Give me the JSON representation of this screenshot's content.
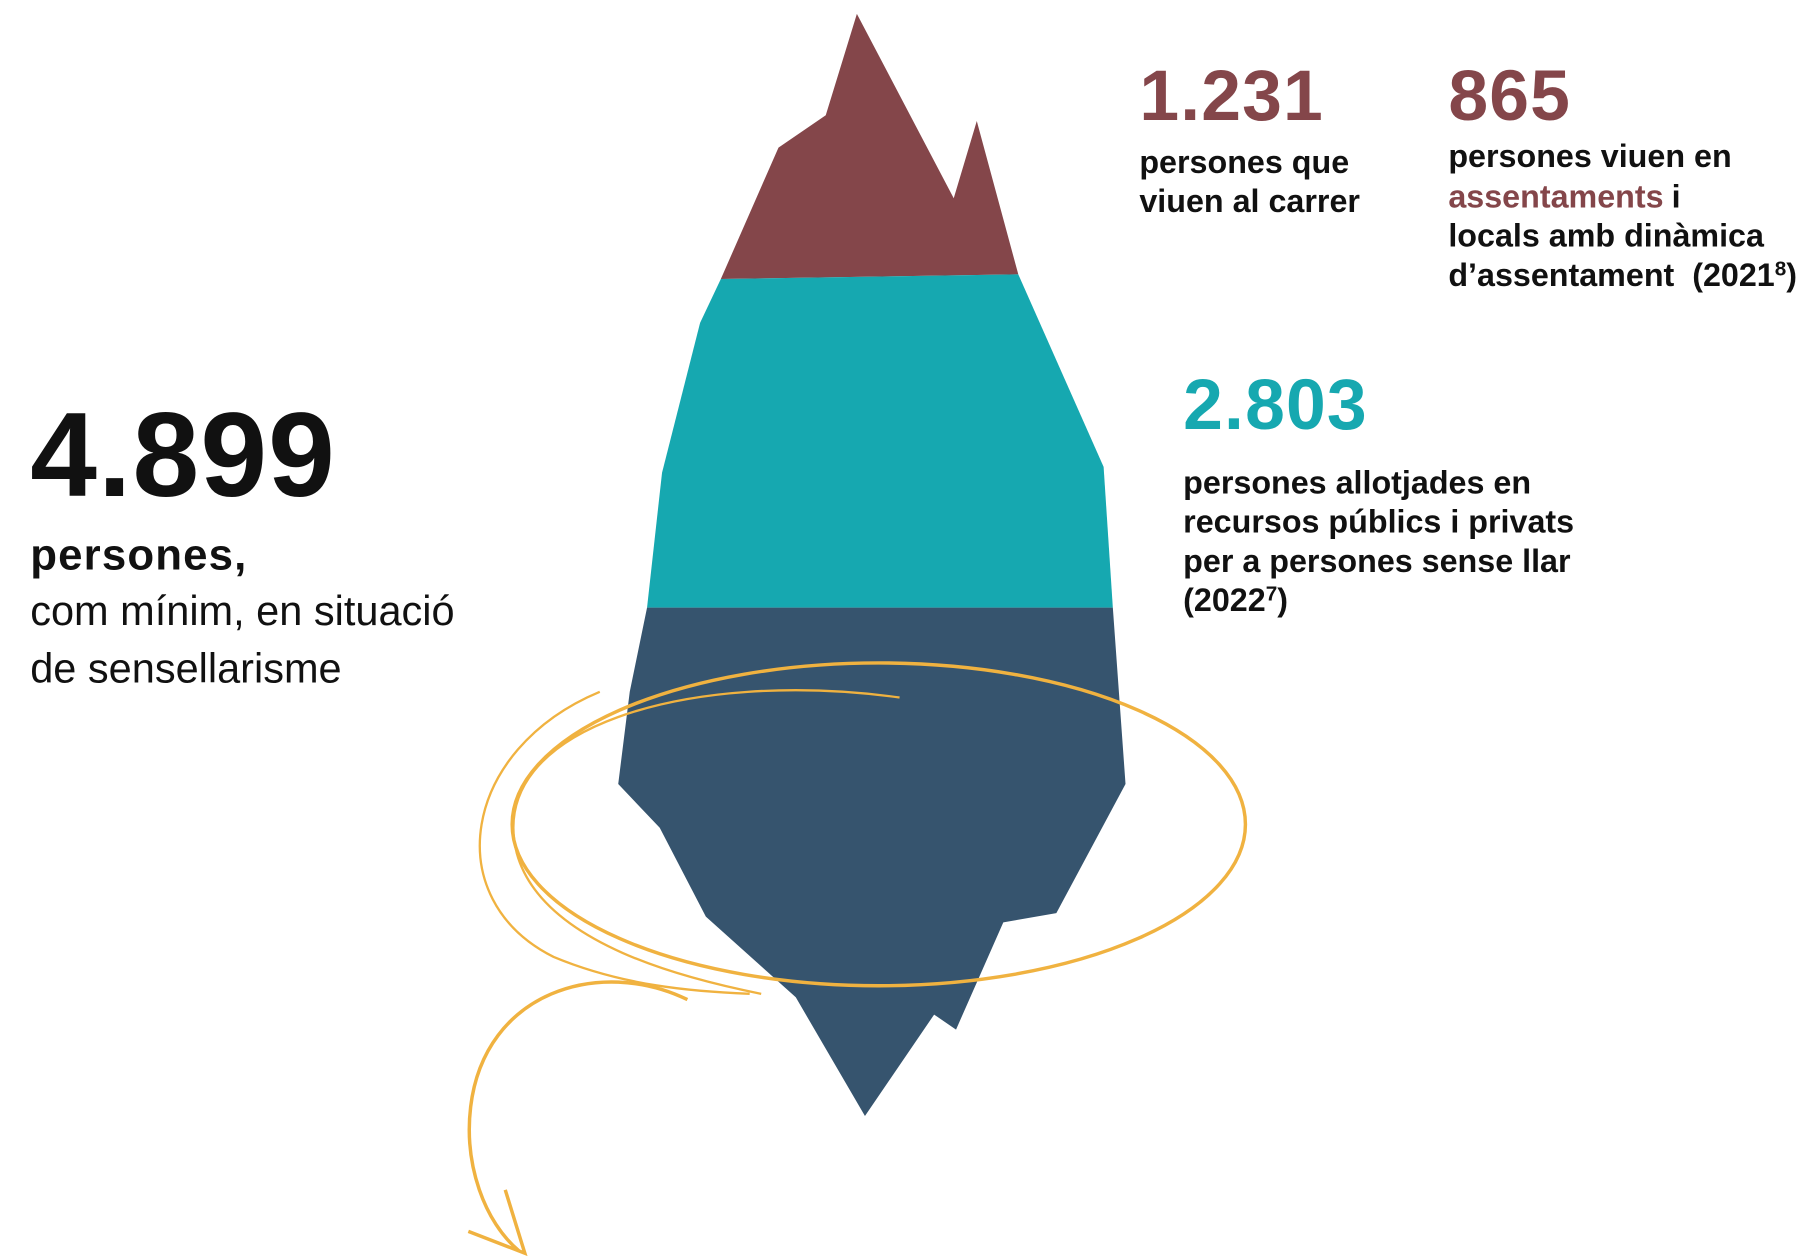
{
  "main": {
    "total": "4.899",
    "bold_label": "persones,",
    "lines": [
      "com mínim, en situació",
      "de sensellarisme"
    ]
  },
  "stats": [
    {
      "number": "1.231",
      "lines": [
        "persones que",
        "viuen al carrer"
      ]
    },
    {
      "number": "865",
      "lines": [
        "persones viuen en"
      ],
      "highlight": "assentaments",
      "after_highlight": "i",
      "more_lines": [
        "locals amb dinàmica",
        "d’assentament  (2021"
      ],
      "ref": "8",
      "close": ")"
    },
    {
      "number": "2.803",
      "lines": [
        "persones allotjades en",
        "recursos públics i privats",
        "per a persones sense llar",
        "(2022"
      ],
      "ref": "7",
      "close": ")"
    }
  ]
}
